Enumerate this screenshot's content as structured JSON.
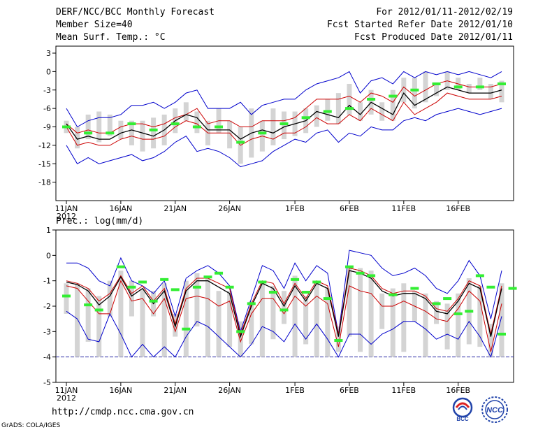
{
  "header": {
    "title": "DERF/NCC/BCC Monthly Forecast",
    "member": "Member Size=40",
    "variable": "Mean Surf. Temp.: °C",
    "period": "For 2012/01/11-2012/02/19",
    "fcst_started": "Fcst Started Refer Date 2012/01/10",
    "fcst_produced": "Fcst Produced Date 2012/01/11"
  },
  "footer": {
    "url": "http://cmdp.ncc.cma.gov.cn",
    "credit": "GrADS: COLA/IGES",
    "logo_bcc": "BCC",
    "logo_ncc": "NCC"
  },
  "colors": {
    "box": "#d4d4d4",
    "upper": "#0000cc",
    "lower": "#cc0000",
    "mean": "#000000",
    "clim": "#33ee33",
    "floor": "#3333aa"
  },
  "chart_data": [
    {
      "type": "line",
      "title": "Mean Surf. Temp.: °C",
      "x_tick_labels": [
        "11JAN",
        "16JAN",
        "21JAN",
        "26JAN",
        "1FEB",
        "6FEB",
        "11FEB",
        "16FEB"
      ],
      "x_tick_days": [
        0,
        5,
        10,
        15,
        21,
        26,
        31,
        36
      ],
      "year_label": "2012",
      "ylim": [
        -21,
        3
      ],
      "yticks": [
        3,
        0,
        -3,
        -6,
        -9,
        -12,
        -15,
        -18
      ],
      "series": [
        {
          "name": "max",
          "values": [
            -6,
            -9,
            -8,
            -7.5,
            -7.5,
            -7,
            -5.5,
            -5.5,
            -5,
            -6,
            -5,
            -3.5,
            -3,
            -6,
            -6,
            -6,
            -5,
            -7,
            -5.5,
            -5,
            -4.5,
            -4.5,
            -3,
            -2,
            -1.5,
            -1,
            0,
            -3.5,
            -1.5,
            -1,
            -2,
            0,
            -1,
            0,
            -0.5,
            0,
            -0.5,
            0,
            -0.5,
            -1,
            0
          ]
        },
        {
          "name": "q_upper",
          "values": [
            -8.5,
            -10,
            -9.5,
            -10,
            -10,
            -9,
            -8.5,
            -8.5,
            -9,
            -8.5,
            -7.5,
            -7,
            -6,
            -8.5,
            -8,
            -8,
            -9,
            -9,
            -8,
            -8,
            -8,
            -7.5,
            -6,
            -4.5,
            -4.5,
            -4.5,
            -4,
            -5,
            -3.5,
            -4,
            -5,
            -2.5,
            -4,
            -3,
            -2,
            -1.5,
            -2,
            -2.5,
            -2.5,
            -2.5,
            -2
          ]
        },
        {
          "name": "mean",
          "values": [
            -8.5,
            -11,
            -10.5,
            -11,
            -11,
            -10,
            -9.5,
            -10,
            -10.5,
            -9.5,
            -8,
            -7,
            -7.5,
            -9.5,
            -9.5,
            -9.5,
            -11,
            -10,
            -9.5,
            -10,
            -9,
            -8.5,
            -8,
            -6.5,
            -7,
            -7.5,
            -5.5,
            -7,
            -5,
            -6,
            -7,
            -3.5,
            -5.5,
            -4.5,
            -3.5,
            -2.5,
            -3,
            -3.5,
            -3.5,
            -3.5,
            -3
          ]
        },
        {
          "name": "q_lower",
          "values": [
            -9,
            -12,
            -11.5,
            -12,
            -12,
            -11,
            -10.5,
            -11,
            -11,
            -10.5,
            -9,
            -8,
            -8.5,
            -10,
            -10,
            -10,
            -12,
            -11,
            -10.5,
            -11,
            -10,
            -10,
            -9,
            -7.5,
            -8.5,
            -8.5,
            -7,
            -8,
            -6,
            -7,
            -8,
            -5,
            -7,
            -6,
            -5,
            -3.5,
            -4,
            -4.5,
            -4.5,
            -4.5,
            -4
          ]
        },
        {
          "name": "min",
          "values": [
            -12,
            -15,
            -14,
            -15,
            -14.5,
            -14,
            -13.5,
            -14.5,
            -14,
            -13,
            -11.5,
            -10.5,
            -13,
            -12.5,
            -13,
            -14,
            -15.5,
            -15,
            -14.5,
            -13,
            -12,
            -11,
            -11.5,
            -10,
            -9.5,
            -11.5,
            -10,
            -10.5,
            -9,
            -9.5,
            -9.5,
            -8,
            -7.5,
            -8,
            -7,
            -6.5,
            -6,
            -6.5,
            -7,
            -6.5,
            -6
          ]
        }
      ],
      "box_ranges": [
        [
          -10,
          -8
        ],
        [
          -12.5,
          -9
        ],
        [
          -11,
          -7
        ],
        [
          -11.5,
          -6.5
        ],
        [
          -10.5,
          -7
        ],
        [
          -11,
          -8
        ],
        [
          -12,
          -8
        ],
        [
          -13,
          -8
        ],
        [
          -12.5,
          -7.5
        ],
        [
          -12,
          -7
        ],
        [
          -10,
          -6
        ],
        [
          -8,
          -5
        ],
        [
          -10,
          -6.5
        ],
        [
          -12,
          -8
        ],
        [
          -10,
          -6
        ],
        [
          -12.5,
          -8
        ],
        [
          -15,
          -9
        ],
        [
          -14,
          -6
        ],
        [
          -13,
          -8
        ],
        [
          -12,
          -6
        ],
        [
          -11,
          -6.5
        ],
        [
          -10.5,
          -6.5
        ],
        [
          -10,
          -6
        ],
        [
          -9,
          -5.5
        ],
        [
          -8,
          -4.5
        ],
        [
          -8.5,
          -3.5
        ],
        [
          -7,
          -2
        ],
        [
          -8,
          -5
        ],
        [
          -7,
          -3
        ],
        [
          -8,
          -5
        ],
        [
          -8,
          -3
        ],
        [
          -5,
          -1
        ],
        [
          -6,
          -1
        ],
        [
          -5,
          0
        ],
        [
          -4,
          -2
        ],
        [
          -3,
          0
        ],
        [
          -3,
          -1
        ],
        [
          -3.5,
          -2
        ],
        [
          -3,
          -1
        ],
        [
          -4.5,
          -2
        ],
        [
          -5,
          -1.5
        ]
      ],
      "clim": [
        {
          "day": 0,
          "v": -9
        },
        {
          "day": 2,
          "v": -10
        },
        {
          "day": 4,
          "v": -10
        },
        {
          "day": 6,
          "v": -8.5
        },
        {
          "day": 8,
          "v": -9.5
        },
        {
          "day": 10,
          "v": -8.5
        },
        {
          "day": 12,
          "v": -9
        },
        {
          "day": 14,
          "v": -9
        },
        {
          "day": 16,
          "v": -11.5
        },
        {
          "day": 18,
          "v": -10
        },
        {
          "day": 20,
          "v": -8.5
        },
        {
          "day": 22,
          "v": -7.5
        },
        {
          "day": 24,
          "v": -6.5
        },
        {
          "day": 26,
          "v": -6
        },
        {
          "day": 28,
          "v": -4.5
        },
        {
          "day": 30,
          "v": -4
        },
        {
          "day": 32,
          "v": -3
        },
        {
          "day": 34,
          "v": -2
        },
        {
          "day": 36,
          "v": -2.5
        },
        {
          "day": 38,
          "v": -2.5
        },
        {
          "day": 40,
          "v": -2
        }
      ]
    },
    {
      "type": "line",
      "title": "Prec.: log(mm/d)",
      "x_tick_labels": [
        "11JAN",
        "16JAN",
        "21JAN",
        "26JAN",
        "1FEB",
        "6FEB",
        "11FEB",
        "16FEB"
      ],
      "x_tick_days": [
        0,
        5,
        10,
        15,
        21,
        26,
        31,
        36
      ],
      "year_label": "2012",
      "ylim": [
        -5,
        1
      ],
      "yticks": [
        1,
        0,
        -1,
        -2,
        -3,
        -4,
        -5
      ],
      "floor": -4,
      "series": [
        {
          "name": "max",
          "values": [
            -0.3,
            -0.3,
            -0.5,
            -1,
            -1.2,
            -0.1,
            -1,
            -1.2,
            -1.5,
            -1,
            -2.4,
            -0.9,
            -0.6,
            -0.4,
            -0.7,
            -1.2,
            -3,
            -1.7,
            -0.4,
            -0.6,
            -1.3,
            -0.3,
            -1,
            -0.4,
            -0.7,
            -3.1,
            0.2,
            0.1,
            0,
            -0.5,
            -0.8,
            -0.7,
            -0.5,
            -0.8,
            -1.3,
            -1.5,
            -1,
            -0.2,
            -0.8,
            -2.5,
            -0.6
          ]
        },
        {
          "name": "q_upper",
          "values": [
            -1,
            -1.1,
            -1.3,
            -1.8,
            -1.5,
            -0.8,
            -1.5,
            -1.2,
            -1.8,
            -1.3,
            -2.7,
            -1.3,
            -0.9,
            -0.9,
            -1.1,
            -1.3,
            -3.1,
            -1.9,
            -1,
            -1.1,
            -1.9,
            -1.1,
            -1.7,
            -1,
            -1.2,
            -3.1,
            -0.5,
            -0.6,
            -0.8,
            -1.3,
            -1.5,
            -1.4,
            -1.4,
            -1.6,
            -2.1,
            -2.2,
            -1.7,
            -1,
            -1.2,
            -3.1,
            -1.2
          ]
        },
        {
          "name": "mean",
          "values": [
            -1.05,
            -1.15,
            -1.4,
            -1.95,
            -1.6,
            -0.85,
            -1.6,
            -1.3,
            -1.9,
            -1.4,
            -2.8,
            -1.4,
            -1,
            -1,
            -1.25,
            -1.5,
            -3.2,
            -2,
            -1.1,
            -1.3,
            -2,
            -1.2,
            -1.8,
            -1.1,
            -1.3,
            -3.2,
            -0.6,
            -0.7,
            -0.9,
            -1.4,
            -1.6,
            -1.5,
            -1.5,
            -1.7,
            -2.2,
            -2.3,
            -1.8,
            -1.1,
            -1.3,
            -3.2,
            -1.3
          ]
        },
        {
          "name": "q_lower",
          "values": [
            -1.2,
            -1.3,
            -1.8,
            -2.3,
            -2.3,
            -1,
            -1.8,
            -1.7,
            -2.3,
            -1.7,
            -3,
            -1.7,
            -1.6,
            -1.7,
            -2,
            -1.8,
            -3.4,
            -2.3,
            -1.7,
            -1.7,
            -2.3,
            -1.6,
            -2,
            -1.6,
            -1.9,
            -3.6,
            -1.2,
            -1.4,
            -1.5,
            -2,
            -2,
            -1.8,
            -2,
            -2.2,
            -2.5,
            -2.6,
            -2.1,
            -1.4,
            -1.8,
            -3.8,
            -1.9
          ]
        },
        {
          "name": "min",
          "values": [
            -2.2,
            -2.5,
            -3.3,
            -3.4,
            -2.3,
            -3.1,
            -4,
            -3.5,
            -4,
            -3.6,
            -4,
            -3.2,
            -2.6,
            -2.8,
            -3.2,
            -3.6,
            -4,
            -3.5,
            -2.8,
            -3,
            -3.4,
            -2.7,
            -3.3,
            -2.7,
            -3.3,
            -4,
            -3.1,
            -3.1,
            -3.5,
            -3.1,
            -2.9,
            -2.6,
            -2.6,
            -2.9,
            -3.3,
            -3.1,
            -3.3,
            -2.6,
            -3.2,
            -4,
            -2.4
          ]
        }
      ],
      "box_ranges": [
        [
          -2.3,
          -1.1
        ],
        [
          -4,
          -1.1
        ],
        [
          -3.4,
          -1.3
        ],
        [
          -4,
          -1.6
        ],
        [
          -2.4,
          -1
        ],
        [
          -4,
          -0.6
        ],
        [
          -2.4,
          -1
        ],
        [
          -4,
          -1.3
        ],
        [
          -2.4,
          -1.4
        ],
        [
          -4,
          -1.1
        ],
        [
          -3.2,
          -2.3
        ],
        [
          -4,
          -1
        ],
        [
          -2.8,
          -0.7
        ],
        [
          -4,
          -0.9
        ],
        [
          -4,
          -1.4
        ],
        [
          -3.6,
          -1.4
        ],
        [
          -4,
          -2.6
        ],
        [
          -3.5,
          -1.8
        ],
        [
          -4,
          -1
        ],
        [
          -3.3,
          -1.2
        ],
        [
          -2.7,
          -1.4
        ],
        [
          -4,
          -0.8
        ],
        [
          -3.5,
          -1.6
        ],
        [
          -4,
          -1
        ],
        [
          -4,
          -1.3
        ],
        [
          -3.8,
          -2.8
        ],
        [
          -3.2,
          -0.4
        ],
        [
          -3.8,
          -0.5
        ],
        [
          -4,
          -0.6
        ],
        [
          -2.9,
          -1.5
        ],
        [
          -4,
          -1.3
        ],
        [
          -3.8,
          -1.1
        ],
        [
          -2.6,
          -1.4
        ],
        [
          -4,
          -1.5
        ],
        [
          -2.7,
          -1.8
        ],
        [
          -3.7,
          -1.9
        ],
        [
          -4,
          -1.5
        ],
        [
          -3.5,
          -0.9
        ],
        [
          -3.6,
          -1.2
        ],
        [
          -4,
          -2.7
        ],
        [
          -4,
          -1.1
        ]
      ],
      "clim": [
        {
          "day": 0,
          "v": -1.6
        },
        {
          "day": 2,
          "v": -1.95
        },
        {
          "day": 3,
          "v": -2.15
        },
        {
          "day": 5,
          "v": -0.45
        },
        {
          "day": 6,
          "v": -1.25
        },
        {
          "day": 7,
          "v": -1.05
        },
        {
          "day": 8,
          "v": -1.8
        },
        {
          "day": 9,
          "v": -0.95
        },
        {
          "day": 10,
          "v": -1.35
        },
        {
          "day": 11,
          "v": -2.9
        },
        {
          "day": 12,
          "v": -1.25
        },
        {
          "day": 13,
          "v": -0.85
        },
        {
          "day": 14,
          "v": -0.7
        },
        {
          "day": 15,
          "v": -1.25
        },
        {
          "day": 16,
          "v": -3
        },
        {
          "day": 17,
          "v": -1.9
        },
        {
          "day": 18,
          "v": -1.05
        },
        {
          "day": 19,
          "v": -1.45
        },
        {
          "day": 20,
          "v": -2.15
        },
        {
          "day": 21,
          "v": -0.95
        },
        {
          "day": 22,
          "v": -1.45
        },
        {
          "day": 23,
          "v": -1.05
        },
        {
          "day": 24,
          "v": -1.7
        },
        {
          "day": 25,
          "v": -3.35
        },
        {
          "day": 26,
          "v": -0.45
        },
        {
          "day": 27,
          "v": -0.7
        },
        {
          "day": 28,
          "v": -0.8
        },
        {
          "day": 30,
          "v": -1.55
        },
        {
          "day": 32,
          "v": -1.3
        },
        {
          "day": 34,
          "v": -1.9
        },
        {
          "day": 35,
          "v": -1.7
        },
        {
          "day": 36,
          "v": -2.3
        },
        {
          "day": 37,
          "v": -2.2
        },
        {
          "day": 38,
          "v": -0.8
        },
        {
          "day": 39,
          "v": -1.25
        },
        {
          "day": 40,
          "v": -3.1
        },
        {
          "day": 41,
          "v": -1.3
        }
      ]
    }
  ]
}
